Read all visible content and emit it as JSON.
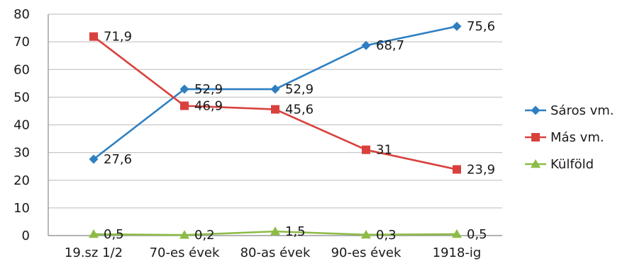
{
  "chart_data": {
    "type": "line",
    "categories": [
      "19.sz 1/2",
      "70-es évek",
      "80-as évek",
      "90-es évek",
      "1918-ig"
    ],
    "ylim": [
      0,
      80
    ],
    "yticks": [
      "0",
      "10",
      "20",
      "30",
      "40",
      "50",
      "60",
      "70",
      "80"
    ],
    "grid": true,
    "legend_position": "right",
    "series": [
      {
        "name": "Sáros vm.",
        "color": "#2e7fc1",
        "marker": "diamond",
        "values": [
          27.6,
          52.9,
          52.9,
          68.7,
          75.6
        ],
        "labels": [
          "27,6",
          "52,9",
          "52,9",
          "68,7",
          "75,6"
        ]
      },
      {
        "name": "Más vm.",
        "color": "#d9413d",
        "marker": "square",
        "values": [
          71.9,
          46.9,
          45.6,
          31,
          23.9
        ],
        "labels": [
          "71,9",
          "46,9",
          "45,6",
          "31",
          "23,9"
        ]
      },
      {
        "name": "Külföld",
        "color": "#8dbb46",
        "marker": "triangle",
        "values": [
          0.5,
          0.2,
          1.5,
          0.3,
          0.5
        ],
        "labels": [
          "0,5",
          "0,2",
          "1,5",
          "0,3",
          "0,5"
        ]
      }
    ]
  }
}
